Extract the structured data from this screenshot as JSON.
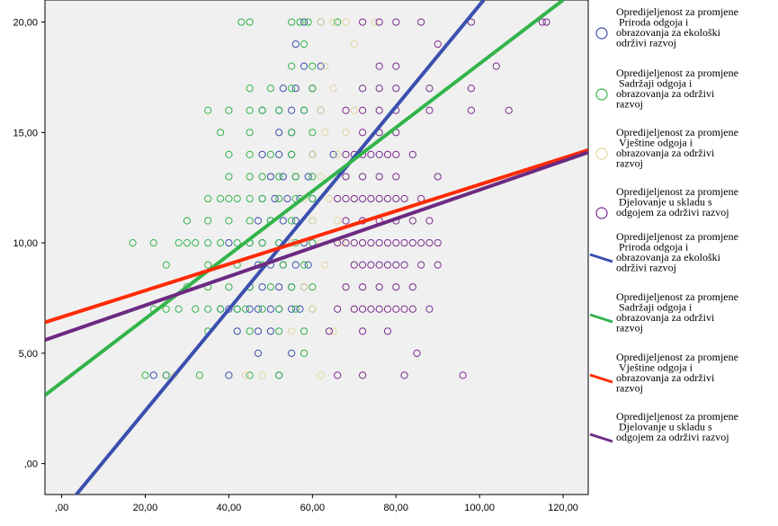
{
  "chart_data": {
    "type": "scatter",
    "title": "",
    "xlabel": "",
    "ylabel": "",
    "xlim": [
      -4,
      126
    ],
    "ylim": [
      -1.4,
      21.0
    ],
    "xticks": [
      ",00",
      "20,00",
      "40,00",
      "60,00",
      "80,00",
      "100,00",
      "120,00"
    ],
    "xtick_values": [
      0,
      20,
      40,
      60,
      80,
      100,
      120
    ],
    "yticks": [
      ",00",
      "5,00",
      "10,00",
      "15,00",
      "20,00"
    ],
    "ytick_values": [
      0,
      5,
      10,
      15,
      20
    ],
    "grid": false,
    "legend_position": "right",
    "scatter_series": [
      {
        "name": [
          "Opredijeljenost za promjene",
          "Priroda odgoja i",
          "obrazovanja za ekološki",
          "održivi razvoj"
        ],
        "color": "#3b4fae",
        "points": [
          [
            22,
            4
          ],
          [
            25,
            4
          ],
          [
            40,
            4
          ],
          [
            52,
            4
          ],
          [
            47,
            5
          ],
          [
            55,
            5
          ],
          [
            42,
            6
          ],
          [
            47,
            6
          ],
          [
            50,
            6
          ],
          [
            38,
            7
          ],
          [
            40,
            7
          ],
          [
            42,
            7
          ],
          [
            45,
            7
          ],
          [
            47,
            7
          ],
          [
            50,
            7
          ],
          [
            52,
            7
          ],
          [
            55,
            7
          ],
          [
            57,
            7
          ],
          [
            45,
            8
          ],
          [
            48,
            8
          ],
          [
            52,
            8
          ],
          [
            55,
            8
          ],
          [
            58,
            8
          ],
          [
            47,
            9
          ],
          [
            50,
            9
          ],
          [
            53,
            9
          ],
          [
            56,
            9
          ],
          [
            59,
            9
          ],
          [
            40,
            10
          ],
          [
            45,
            10
          ],
          [
            48,
            10
          ],
          [
            52,
            10
          ],
          [
            55,
            10
          ],
          [
            58,
            10
          ],
          [
            60,
            10
          ],
          [
            47,
            11
          ],
          [
            50,
            11
          ],
          [
            53,
            11
          ],
          [
            56,
            11
          ],
          [
            48,
            12
          ],
          [
            51,
            12
          ],
          [
            54,
            12
          ],
          [
            57,
            12
          ],
          [
            60,
            12
          ],
          [
            50,
            13
          ],
          [
            53,
            13
          ],
          [
            56,
            13
          ],
          [
            59,
            13
          ],
          [
            48,
            14
          ],
          [
            52,
            14
          ],
          [
            55,
            14
          ],
          [
            60,
            14
          ],
          [
            65,
            14
          ],
          [
            52,
            15
          ],
          [
            55,
            15
          ],
          [
            48,
            16
          ],
          [
            52,
            16
          ],
          [
            55,
            16
          ],
          [
            58,
            16
          ],
          [
            62,
            16
          ],
          [
            53,
            17
          ],
          [
            56,
            17
          ],
          [
            60,
            17
          ],
          [
            58,
            18
          ],
          [
            62,
            18
          ],
          [
            56,
            19
          ],
          [
            58,
            20
          ],
          [
            62,
            20
          ]
        ]
      },
      {
        "name": [
          "Opredijeljenost za promjene",
          "Sadržaji odgoja i",
          "obrazovanja za održivi",
          "razvoj"
        ],
        "color": "#33b44a",
        "points": [
          [
            20,
            4
          ],
          [
            25,
            4
          ],
          [
            33,
            4
          ],
          [
            45,
            4
          ],
          [
            52,
            4
          ],
          [
            58,
            5
          ],
          [
            35,
            6
          ],
          [
            45,
            6
          ],
          [
            52,
            6
          ],
          [
            58,
            6
          ],
          [
            22,
            7
          ],
          [
            25,
            7
          ],
          [
            28,
            7
          ],
          [
            32,
            7
          ],
          [
            35,
            7
          ],
          [
            38,
            7
          ],
          [
            42,
            7
          ],
          [
            44,
            7
          ],
          [
            48,
            7
          ],
          [
            52,
            7
          ],
          [
            56,
            7
          ],
          [
            60,
            7
          ],
          [
            30,
            8
          ],
          [
            35,
            8
          ],
          [
            40,
            8
          ],
          [
            45,
            8
          ],
          [
            50,
            8
          ],
          [
            55,
            8
          ],
          [
            60,
            8
          ],
          [
            25,
            9
          ],
          [
            35,
            9
          ],
          [
            42,
            9
          ],
          [
            48,
            9
          ],
          [
            53,
            9
          ],
          [
            58,
            9
          ],
          [
            17,
            10
          ],
          [
            22,
            10
          ],
          [
            28,
            10
          ],
          [
            30,
            10
          ],
          [
            32,
            10
          ],
          [
            35,
            10
          ],
          [
            38,
            10
          ],
          [
            42,
            10
          ],
          [
            45,
            10
          ],
          [
            48,
            10
          ],
          [
            52,
            10
          ],
          [
            56,
            10
          ],
          [
            60,
            10
          ],
          [
            30,
            11
          ],
          [
            35,
            11
          ],
          [
            40,
            11
          ],
          [
            45,
            11
          ],
          [
            50,
            11
          ],
          [
            55,
            11
          ],
          [
            60,
            11
          ],
          [
            35,
            12
          ],
          [
            38,
            12
          ],
          [
            40,
            12
          ],
          [
            42,
            12
          ],
          [
            45,
            12
          ],
          [
            48,
            12
          ],
          [
            52,
            12
          ],
          [
            56,
            12
          ],
          [
            60,
            12
          ],
          [
            40,
            13
          ],
          [
            45,
            13
          ],
          [
            48,
            13
          ],
          [
            52,
            13
          ],
          [
            56,
            13
          ],
          [
            60,
            13
          ],
          [
            40,
            14
          ],
          [
            45,
            14
          ],
          [
            50,
            14
          ],
          [
            55,
            14
          ],
          [
            60,
            14
          ],
          [
            38,
            15
          ],
          [
            45,
            15
          ],
          [
            55,
            15
          ],
          [
            60,
            15
          ],
          [
            35,
            16
          ],
          [
            40,
            16
          ],
          [
            45,
            16
          ],
          [
            48,
            16
          ],
          [
            52,
            16
          ],
          [
            58,
            16
          ],
          [
            45,
            17
          ],
          [
            50,
            17
          ],
          [
            55,
            17
          ],
          [
            60,
            17
          ],
          [
            55,
            18
          ],
          [
            60,
            18
          ],
          [
            58,
            19
          ],
          [
            43,
            20
          ],
          [
            45,
            20
          ],
          [
            55,
            20
          ],
          [
            57,
            20
          ],
          [
            59,
            20
          ],
          [
            66,
            20
          ]
        ]
      },
      {
        "name": [
          "Opredijeljenost za promjene",
          "Vještine odgoja i",
          "obrazovanja za održivi",
          "razvoj"
        ],
        "color": "#e4d6a0",
        "points": [
          [
            27,
            4
          ],
          [
            44,
            4
          ],
          [
            48,
            4
          ],
          [
            62,
            4
          ],
          [
            72,
            4
          ],
          [
            55,
            6
          ],
          [
            65,
            6
          ],
          [
            60,
            7
          ],
          [
            70,
            7
          ],
          [
            58,
            8
          ],
          [
            68,
            8
          ],
          [
            63,
            9
          ],
          [
            70,
            9
          ],
          [
            55,
            10
          ],
          [
            62,
            10
          ],
          [
            67,
            10
          ],
          [
            72,
            10
          ],
          [
            60,
            11
          ],
          [
            66,
            11
          ],
          [
            58,
            12
          ],
          [
            64,
            12
          ],
          [
            70,
            12
          ],
          [
            62,
            13
          ],
          [
            68,
            13
          ],
          [
            60,
            14
          ],
          [
            66,
            14
          ],
          [
            72,
            14
          ],
          [
            63,
            15
          ],
          [
            68,
            15
          ],
          [
            62,
            16
          ],
          [
            70,
            16
          ],
          [
            65,
            17
          ],
          [
            63,
            18
          ],
          [
            70,
            19
          ],
          [
            62,
            20
          ],
          [
            65,
            20
          ],
          [
            68,
            20
          ],
          [
            75,
            20
          ]
        ]
      },
      {
        "name": [
          "Opredijeljenost za promjene",
          "Djelovanje u skladu s",
          "odgojem za održivi razvoj"
        ],
        "color": "#7a2c8e",
        "points": [
          [
            66,
            4
          ],
          [
            72,
            4
          ],
          [
            82,
            4
          ],
          [
            96,
            4
          ],
          [
            85,
            5
          ],
          [
            64,
            6
          ],
          [
            72,
            6
          ],
          [
            78,
            6
          ],
          [
            66,
            7
          ],
          [
            70,
            7
          ],
          [
            72,
            7
          ],
          [
            74,
            7
          ],
          [
            76,
            7
          ],
          [
            78,
            7
          ],
          [
            80,
            7
          ],
          [
            82,
            7
          ],
          [
            84,
            7
          ],
          [
            88,
            7
          ],
          [
            68,
            8
          ],
          [
            72,
            8
          ],
          [
            76,
            8
          ],
          [
            80,
            8
          ],
          [
            84,
            8
          ],
          [
            70,
            9
          ],
          [
            72,
            9
          ],
          [
            74,
            9
          ],
          [
            76,
            9
          ],
          [
            78,
            9
          ],
          [
            80,
            9
          ],
          [
            82,
            9
          ],
          [
            86,
            9
          ],
          [
            90,
            9
          ],
          [
            66,
            10
          ],
          [
            68,
            10
          ],
          [
            70,
            10
          ],
          [
            72,
            10
          ],
          [
            74,
            10
          ],
          [
            76,
            10
          ],
          [
            78,
            10
          ],
          [
            80,
            10
          ],
          [
            82,
            10
          ],
          [
            84,
            10
          ],
          [
            86,
            10
          ],
          [
            88,
            10
          ],
          [
            90,
            10
          ],
          [
            68,
            11
          ],
          [
            72,
            11
          ],
          [
            76,
            11
          ],
          [
            80,
            11
          ],
          [
            84,
            11
          ],
          [
            88,
            11
          ],
          [
            66,
            12
          ],
          [
            68,
            12
          ],
          [
            70,
            12
          ],
          [
            72,
            12
          ],
          [
            74,
            12
          ],
          [
            76,
            12
          ],
          [
            78,
            12
          ],
          [
            80,
            12
          ],
          [
            82,
            12
          ],
          [
            86,
            12
          ],
          [
            68,
            13
          ],
          [
            72,
            13
          ],
          [
            76,
            13
          ],
          [
            80,
            13
          ],
          [
            90,
            13
          ],
          [
            68,
            14
          ],
          [
            70,
            14
          ],
          [
            72,
            14
          ],
          [
            74,
            14
          ],
          [
            76,
            14
          ],
          [
            78,
            14
          ],
          [
            80,
            14
          ],
          [
            84,
            14
          ],
          [
            72,
            15
          ],
          [
            76,
            15
          ],
          [
            80,
            15
          ],
          [
            68,
            16
          ],
          [
            72,
            16
          ],
          [
            76,
            16
          ],
          [
            80,
            16
          ],
          [
            88,
            16
          ],
          [
            98,
            16
          ],
          [
            107,
            16
          ],
          [
            72,
            17
          ],
          [
            76,
            17
          ],
          [
            80,
            17
          ],
          [
            88,
            17
          ],
          [
            98,
            17
          ],
          [
            76,
            18
          ],
          [
            80,
            18
          ],
          [
            104,
            18
          ],
          [
            90,
            19
          ],
          [
            72,
            20
          ],
          [
            76,
            20
          ],
          [
            80,
            20
          ],
          [
            86,
            20
          ],
          [
            98,
            20
          ],
          [
            115,
            20
          ],
          [
            116,
            20
          ]
        ]
      }
    ],
    "line_series": [
      {
        "name": [
          "Opredijeljenost za promjene",
          "Priroda odgoja i",
          "obrazovanja za ekološki",
          "održivi razvoj"
        ],
        "color": "#3b4fae",
        "x": [
          3.5,
          101
        ],
        "y": [
          -1.4,
          21.0
        ]
      },
      {
        "name": [
          "Opredijeljenost za promjene",
          "Sadržaji odgoja i",
          "obrazovanja za održivi",
          "razvoj"
        ],
        "color": "#33b44a",
        "x": [
          -4,
          120
        ],
        "y": [
          3.1,
          21.0
        ]
      },
      {
        "name": [
          "Opredijeljenost za promjene",
          "Vještine odgoja i",
          "obrazovanja za održivi",
          "razvoj"
        ],
        "color": "#ff2a00",
        "x": [
          -4,
          126
        ],
        "y": [
          6.4,
          14.2
        ]
      },
      {
        "name": [
          "Opredijeljenost za promjene",
          "Djelovanje u skladu s",
          "odgojem za održivi razvoj"
        ],
        "color": "#6c2a82",
        "x": [
          -4,
          126
        ],
        "y": [
          5.6,
          14.1
        ]
      }
    ]
  }
}
